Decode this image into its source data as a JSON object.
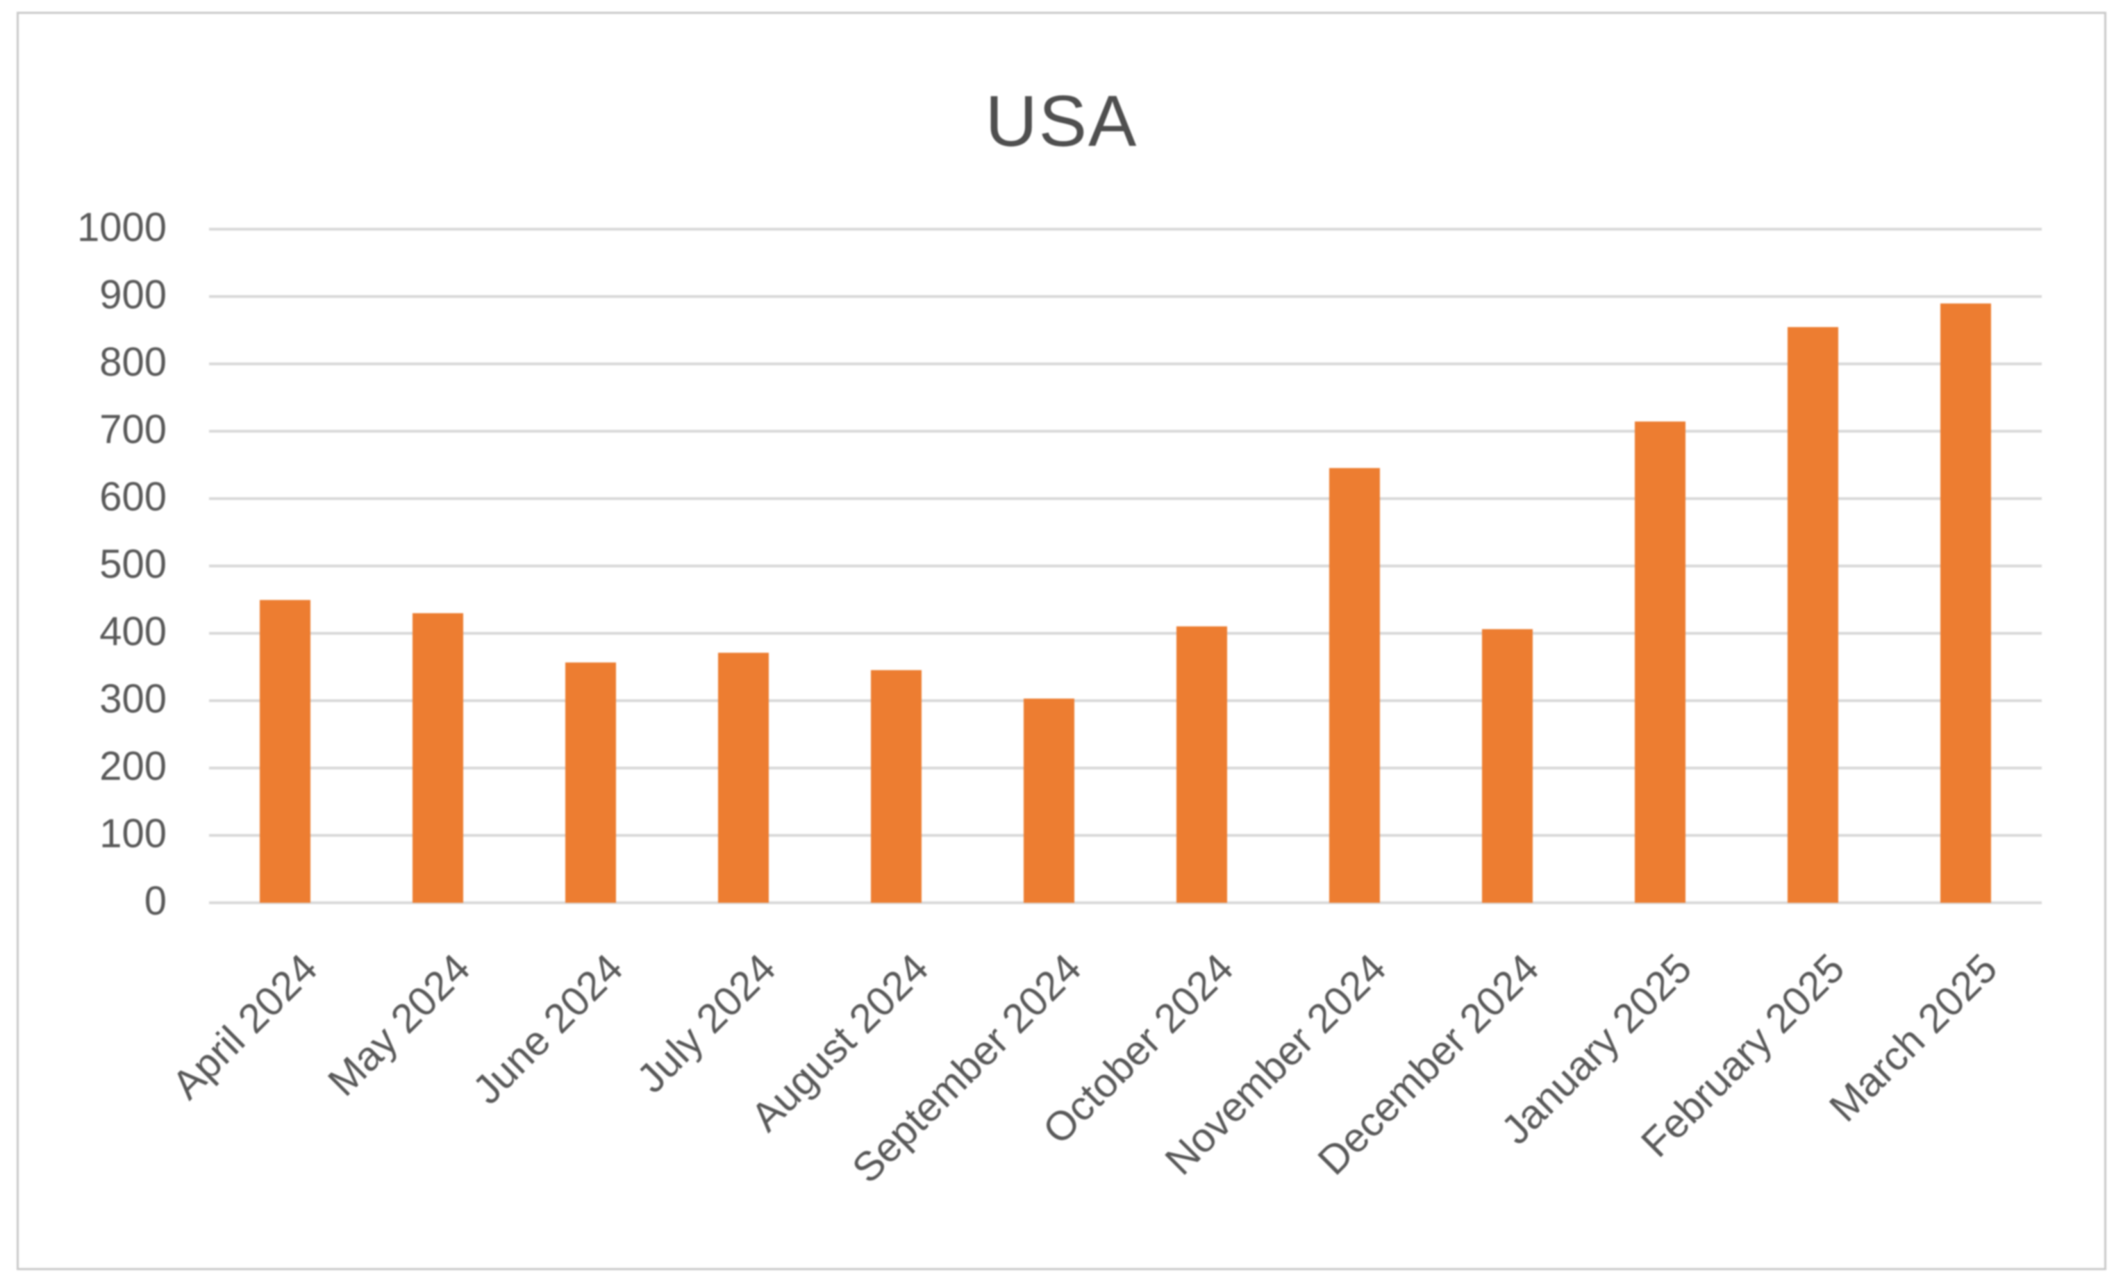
{
  "chart_title": "USA",
  "chart_data": {
    "type": "bar",
    "title": "USA",
    "categories": [
      "April 2024",
      "May 2024",
      "June 2024",
      "July 2024",
      "August 2024",
      "September 2024",
      "October 2024",
      "November 2024",
      "December 2024",
      "January 2025",
      "February 2025",
      "March 2025"
    ],
    "values": [
      450,
      430,
      357,
      371,
      345,
      303,
      410,
      645,
      406,
      714,
      855,
      890
    ],
    "series_name": "USA",
    "xlabel": "",
    "ylabel": "",
    "ylim": [
      0,
      1000
    ],
    "ytick_step": 100,
    "grid": true,
    "legend_position": "none",
    "bar_color": "#ed7d31",
    "gridline_color": "#d9d9d9",
    "tick_label_color": "#595959",
    "title_color": "#4f4f4f",
    "frame_border_color": "#c9c9c9",
    "background_color": "#ffffff"
  }
}
